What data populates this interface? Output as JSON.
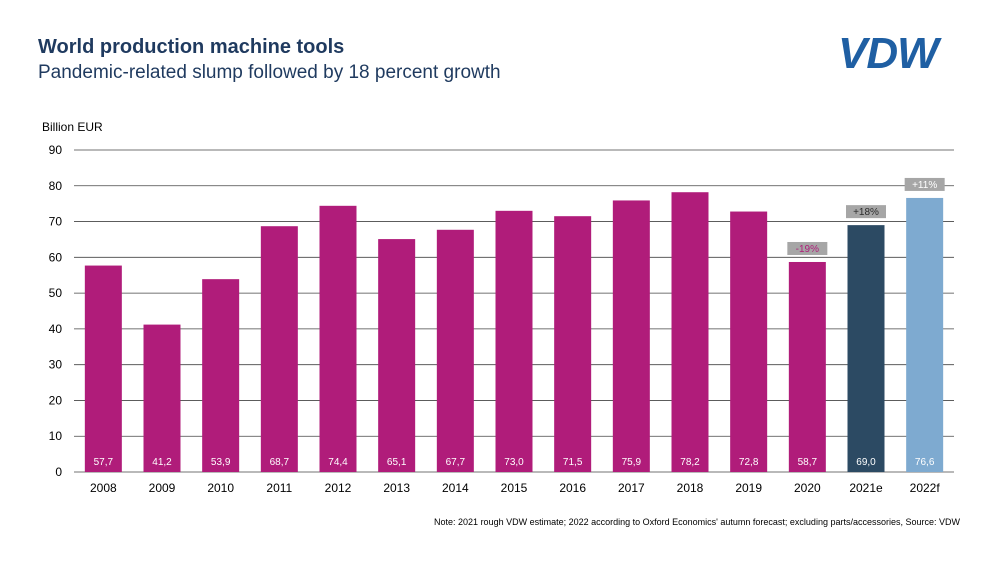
{
  "title": "World production machine tools",
  "subtitle": "Pandemic-related slump followed by 18 percent growth",
  "logo": "VDW",
  "footnote": "Note: 2021 rough VDW estimate; 2022 according to Oxford Economics' autumn forecast; excluding parts/accessories, Source: VDW",
  "colors": {
    "historical": "#b01c7a",
    "estimate": "#2c4a63",
    "forecast": "#7eaad0",
    "brand": "#1f5fa3",
    "grid": "#444444",
    "annotation_bg": "#a6a6a6"
  },
  "chart_data": {
    "type": "bar",
    "title": "World production machine tools",
    "ylabel": "Billion EUR",
    "xlabel": "",
    "ylim": [
      0,
      90
    ],
    "yticks": [
      0,
      10,
      20,
      30,
      40,
      50,
      60,
      70,
      80,
      90
    ],
    "grid": true,
    "categories": [
      "2008",
      "2009",
      "2010",
      "2011",
      "2012",
      "2013",
      "2014",
      "2015",
      "2016",
      "2017",
      "2018",
      "2019",
      "2020",
      "2021e",
      "2022f"
    ],
    "values": [
      57.7,
      41.2,
      53.9,
      68.7,
      74.4,
      65.1,
      67.7,
      73.0,
      71.5,
      75.9,
      78.2,
      72.8,
      58.7,
      69.0,
      76.6
    ],
    "value_labels": [
      "57,7",
      "41,2",
      "53,9",
      "68,7",
      "74,4",
      "65,1",
      "67,7",
      "73,0",
      "71,5",
      "75,9",
      "78,2",
      "72,8",
      "58,7",
      "69,0",
      "76,6"
    ],
    "bar_kinds": [
      "historical",
      "historical",
      "historical",
      "historical",
      "historical",
      "historical",
      "historical",
      "historical",
      "historical",
      "historical",
      "historical",
      "historical",
      "historical",
      "estimate",
      "forecast"
    ],
    "annotations": [
      {
        "category": "2020",
        "text": "-19%",
        "text_color": "#b01c7a"
      },
      {
        "category": "2021e",
        "text": "+18%",
        "text_color": "#2c2c2c"
      },
      {
        "category": "2022f",
        "text": "+11%",
        "text_color": "#ffffff"
      }
    ]
  }
}
